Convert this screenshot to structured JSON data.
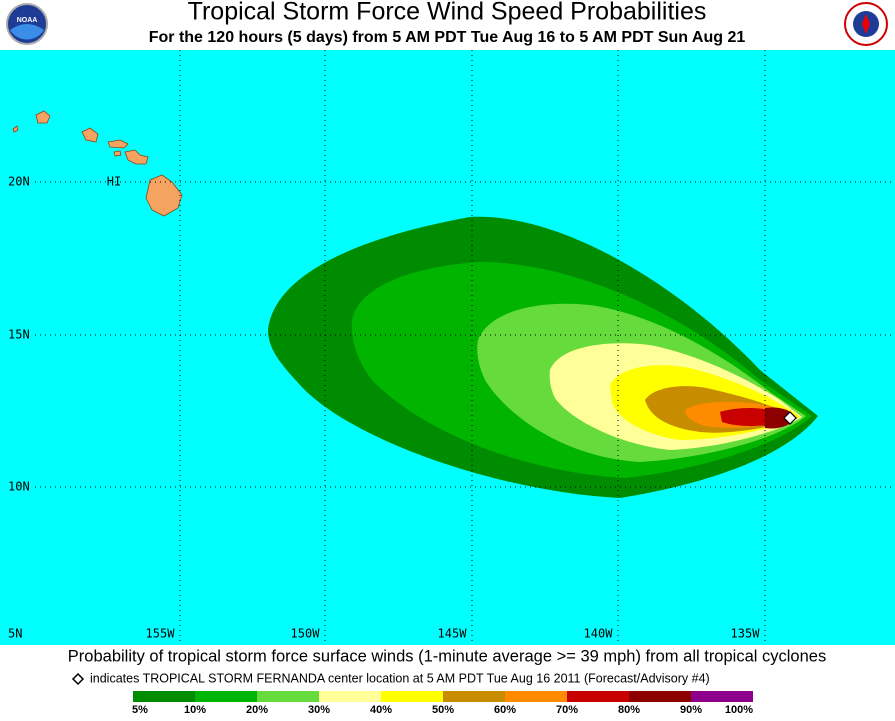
{
  "header": {
    "title": "Tropical Storm Force Wind Speed Probabilities",
    "subtitle": "For the 120 hours (5 days) from 5 AM PDT Tue Aug 16 to 5 AM PDT Sun Aug 21"
  },
  "map": {
    "lat_labels": [
      "20N",
      "15N",
      "10N",
      "5N"
    ],
    "lon_labels": [
      "155W",
      "150W",
      "145W",
      "140W",
      "135W"
    ],
    "place_labels": [
      "HI"
    ]
  },
  "footer": {
    "caption": "Probability of tropical storm force surface winds (1-minute average >= 39 mph) from all tropical cyclones",
    "note": "indicates TROPICAL STORM FERNANDA center location at 5 AM PDT Tue Aug 16 2011 (Forecast/Advisory #4)"
  },
  "legend": {
    "colors": [
      "#008c00",
      "#00b400",
      "#66dc3c",
      "#ffff99",
      "#ffff00",
      "#c88c00",
      "#ff8c00",
      "#c80000",
      "#8c0000",
      "#8c008c"
    ],
    "labels": [
      "5%",
      "10%",
      "20%",
      "30%",
      "40%",
      "50%",
      "60%",
      "70%",
      "80%",
      "90%",
      "100%"
    ]
  }
}
